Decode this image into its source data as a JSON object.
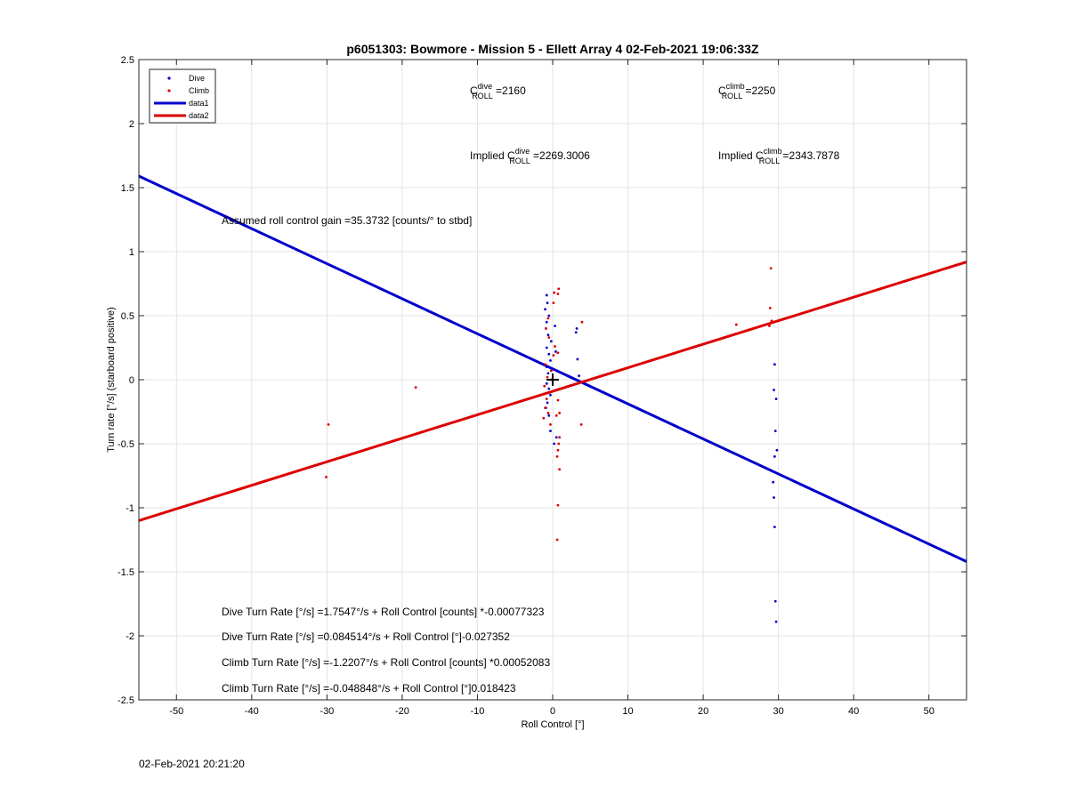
{
  "footer_timestamp": "02-Feb-2021 20:21:20",
  "chart_data": {
    "type": "scatter",
    "title": "p6051303: Bowmore - Mission 5 - Ellett Array 4 02-Feb-2021 19:06:33Z",
    "xlabel": "Roll Control [°]",
    "ylabel": "Turn rate [°/s] (starboard positive)",
    "xlim": [
      -55,
      55
    ],
    "ylim": [
      -2.5,
      2.5
    ],
    "xticks": [
      -50,
      -40,
      -30,
      -20,
      -10,
      0,
      10,
      20,
      30,
      40,
      50
    ],
    "yticks": [
      -2.5,
      -2,
      -1.5,
      -1,
      -0.5,
      0,
      0.5,
      1,
      1.5,
      2,
      2.5
    ],
    "xtick_labels": [
      "-50",
      "-40",
      "-30",
      "-20",
      "-10",
      "0",
      "10",
      "20",
      "30",
      "40",
      "50"
    ],
    "ytick_labels": [
      "-2.5",
      "-2",
      "-1.5",
      "-1",
      "-0.5",
      "0",
      "0.5",
      "1",
      "1.5",
      "2",
      "2.5"
    ],
    "grid": true,
    "legend_position": "top-left",
    "legend": [
      {
        "label": "Dive",
        "kind": "marker",
        "color": "#0000cc"
      },
      {
        "label": "Climb",
        "kind": "marker",
        "color": "#dd0000"
      },
      {
        "label": "data1",
        "kind": "line",
        "color": "#0000cc"
      },
      {
        "label": "data2",
        "kind": "line",
        "color": "#dd0000"
      }
    ],
    "series": [
      {
        "name": "Dive",
        "kind": "points",
        "color": "#0000cc",
        "points": [
          [
            -0.8,
            0.66
          ],
          [
            -0.7,
            0.6
          ],
          [
            -1.0,
            0.55
          ],
          [
            -0.5,
            0.5
          ],
          [
            -0.8,
            0.45
          ],
          [
            -0.9,
            0.4
          ],
          [
            -0.6,
            0.35
          ],
          [
            -0.2,
            0.3
          ],
          [
            -0.8,
            0.25
          ],
          [
            -0.5,
            0.2
          ],
          [
            -0.3,
            0.15
          ],
          [
            -0.8,
            0.1
          ],
          [
            -0.6,
            0.05
          ],
          [
            -0.2,
            0.0
          ],
          [
            -0.8,
            -0.03
          ],
          [
            -0.5,
            -0.07
          ],
          [
            -0.3,
            -0.12
          ],
          [
            -0.7,
            -0.18
          ],
          [
            -0.9,
            -0.22
          ],
          [
            -0.5,
            -0.28
          ],
          [
            -0.3,
            -0.4
          ],
          [
            0.2,
            -0.5
          ],
          [
            0.5,
            -0.45
          ],
          [
            0.3,
            0.42
          ],
          [
            0.4,
            0.22
          ],
          [
            0.6,
            0.07
          ],
          [
            3.2,
            0.4
          ],
          [
            3.1,
            0.37
          ],
          [
            3.3,
            0.16
          ],
          [
            3.5,
            0.03
          ],
          [
            29.5,
            0.12
          ],
          [
            29.4,
            -0.08
          ],
          [
            29.7,
            -0.15
          ],
          [
            29.6,
            -0.4
          ],
          [
            29.8,
            -0.55
          ],
          [
            29.5,
            -0.6
          ],
          [
            29.3,
            -0.8
          ],
          [
            29.4,
            -0.92
          ],
          [
            29.5,
            -1.15
          ],
          [
            29.6,
            -1.73
          ],
          [
            29.7,
            -1.89
          ]
        ]
      },
      {
        "name": "Climb",
        "kind": "points",
        "color": "#dd0000",
        "points": [
          [
            0.2,
            0.68
          ],
          [
            0.8,
            0.71
          ],
          [
            0.7,
            0.67
          ],
          [
            0.1,
            0.6
          ],
          [
            -0.6,
            0.48
          ],
          [
            -0.9,
            0.4
          ],
          [
            -0.5,
            0.33
          ],
          [
            0.3,
            0.26
          ],
          [
            0.1,
            0.19
          ],
          [
            0.7,
            0.21
          ],
          [
            -1.0,
            0.12
          ],
          [
            -0.2,
            0.07
          ],
          [
            -0.7,
            0.02
          ],
          [
            -1.1,
            -0.05
          ],
          [
            -0.4,
            -0.1
          ],
          [
            -0.8,
            -0.15
          ],
          [
            -1.0,
            -0.22
          ],
          [
            -0.6,
            -0.26
          ],
          [
            -1.2,
            -0.3
          ],
          [
            -0.3,
            -0.35
          ],
          [
            0.5,
            -0.28
          ],
          [
            0.9,
            -0.26
          ],
          [
            0.7,
            -0.16
          ],
          [
            0.9,
            -0.45
          ],
          [
            0.8,
            -0.5
          ],
          [
            0.7,
            -0.55
          ],
          [
            0.6,
            -0.6
          ],
          [
            0.9,
            -0.7
          ],
          [
            0.7,
            -0.98
          ],
          [
            0.6,
            -1.25
          ],
          [
            3.9,
            0.45
          ],
          [
            3.8,
            -0.35
          ],
          [
            -18.2,
            -0.06
          ],
          [
            -29.8,
            -0.35
          ],
          [
            -30.1,
            -0.76
          ],
          [
            24.4,
            0.43
          ],
          [
            29.0,
            0.87
          ],
          [
            28.9,
            0.56
          ],
          [
            29.1,
            0.46
          ],
          [
            28.8,
            0.42
          ]
        ]
      },
      {
        "name": "data1",
        "kind": "line",
        "color": "#0000cc",
        "x": [
          -55,
          55
        ],
        "y": [
          1.59,
          -1.42
        ]
      },
      {
        "name": "data2",
        "kind": "line",
        "color": "#dd0000",
        "x": [
          -55,
          55
        ],
        "y": [
          -1.1,
          0.92
        ]
      }
    ],
    "marker_cross": {
      "x": 0,
      "y": 0
    },
    "annotations": {
      "c_dive": {
        "prefix": "C",
        "sup": "dive",
        "sub": "ROLL",
        "suffix": " =2160"
      },
      "c_climb": {
        "prefix": "C",
        "sup": "climb",
        "sub": "ROLL",
        "suffix": " =2250"
      },
      "implied_dive": {
        "prefix": "Implied C",
        "sup": "dive",
        "sub": "ROLL",
        "suffix": " =2269.3006"
      },
      "implied_climb": {
        "prefix": "Implied C",
        "sup": "climb",
        "sub": "ROLL",
        "suffix": " =2343.7878"
      },
      "gain": "Assumed roll control gain =35.3732 [counts/° to stbd]",
      "equations": [
        "Dive Turn Rate [°/s] =1.7547°/s + Roll Control [counts] *-0.00077323",
        "Dive Turn Rate [°/s] =0.084514°/s + Roll Control [°]-0.027352",
        "Climb Turn Rate [°/s] =-1.2207°/s + Roll Control [counts] *0.00052083",
        "Climb Turn Rate [°/s] =-0.048848°/s + Roll Control [°]0.018423"
      ]
    }
  }
}
